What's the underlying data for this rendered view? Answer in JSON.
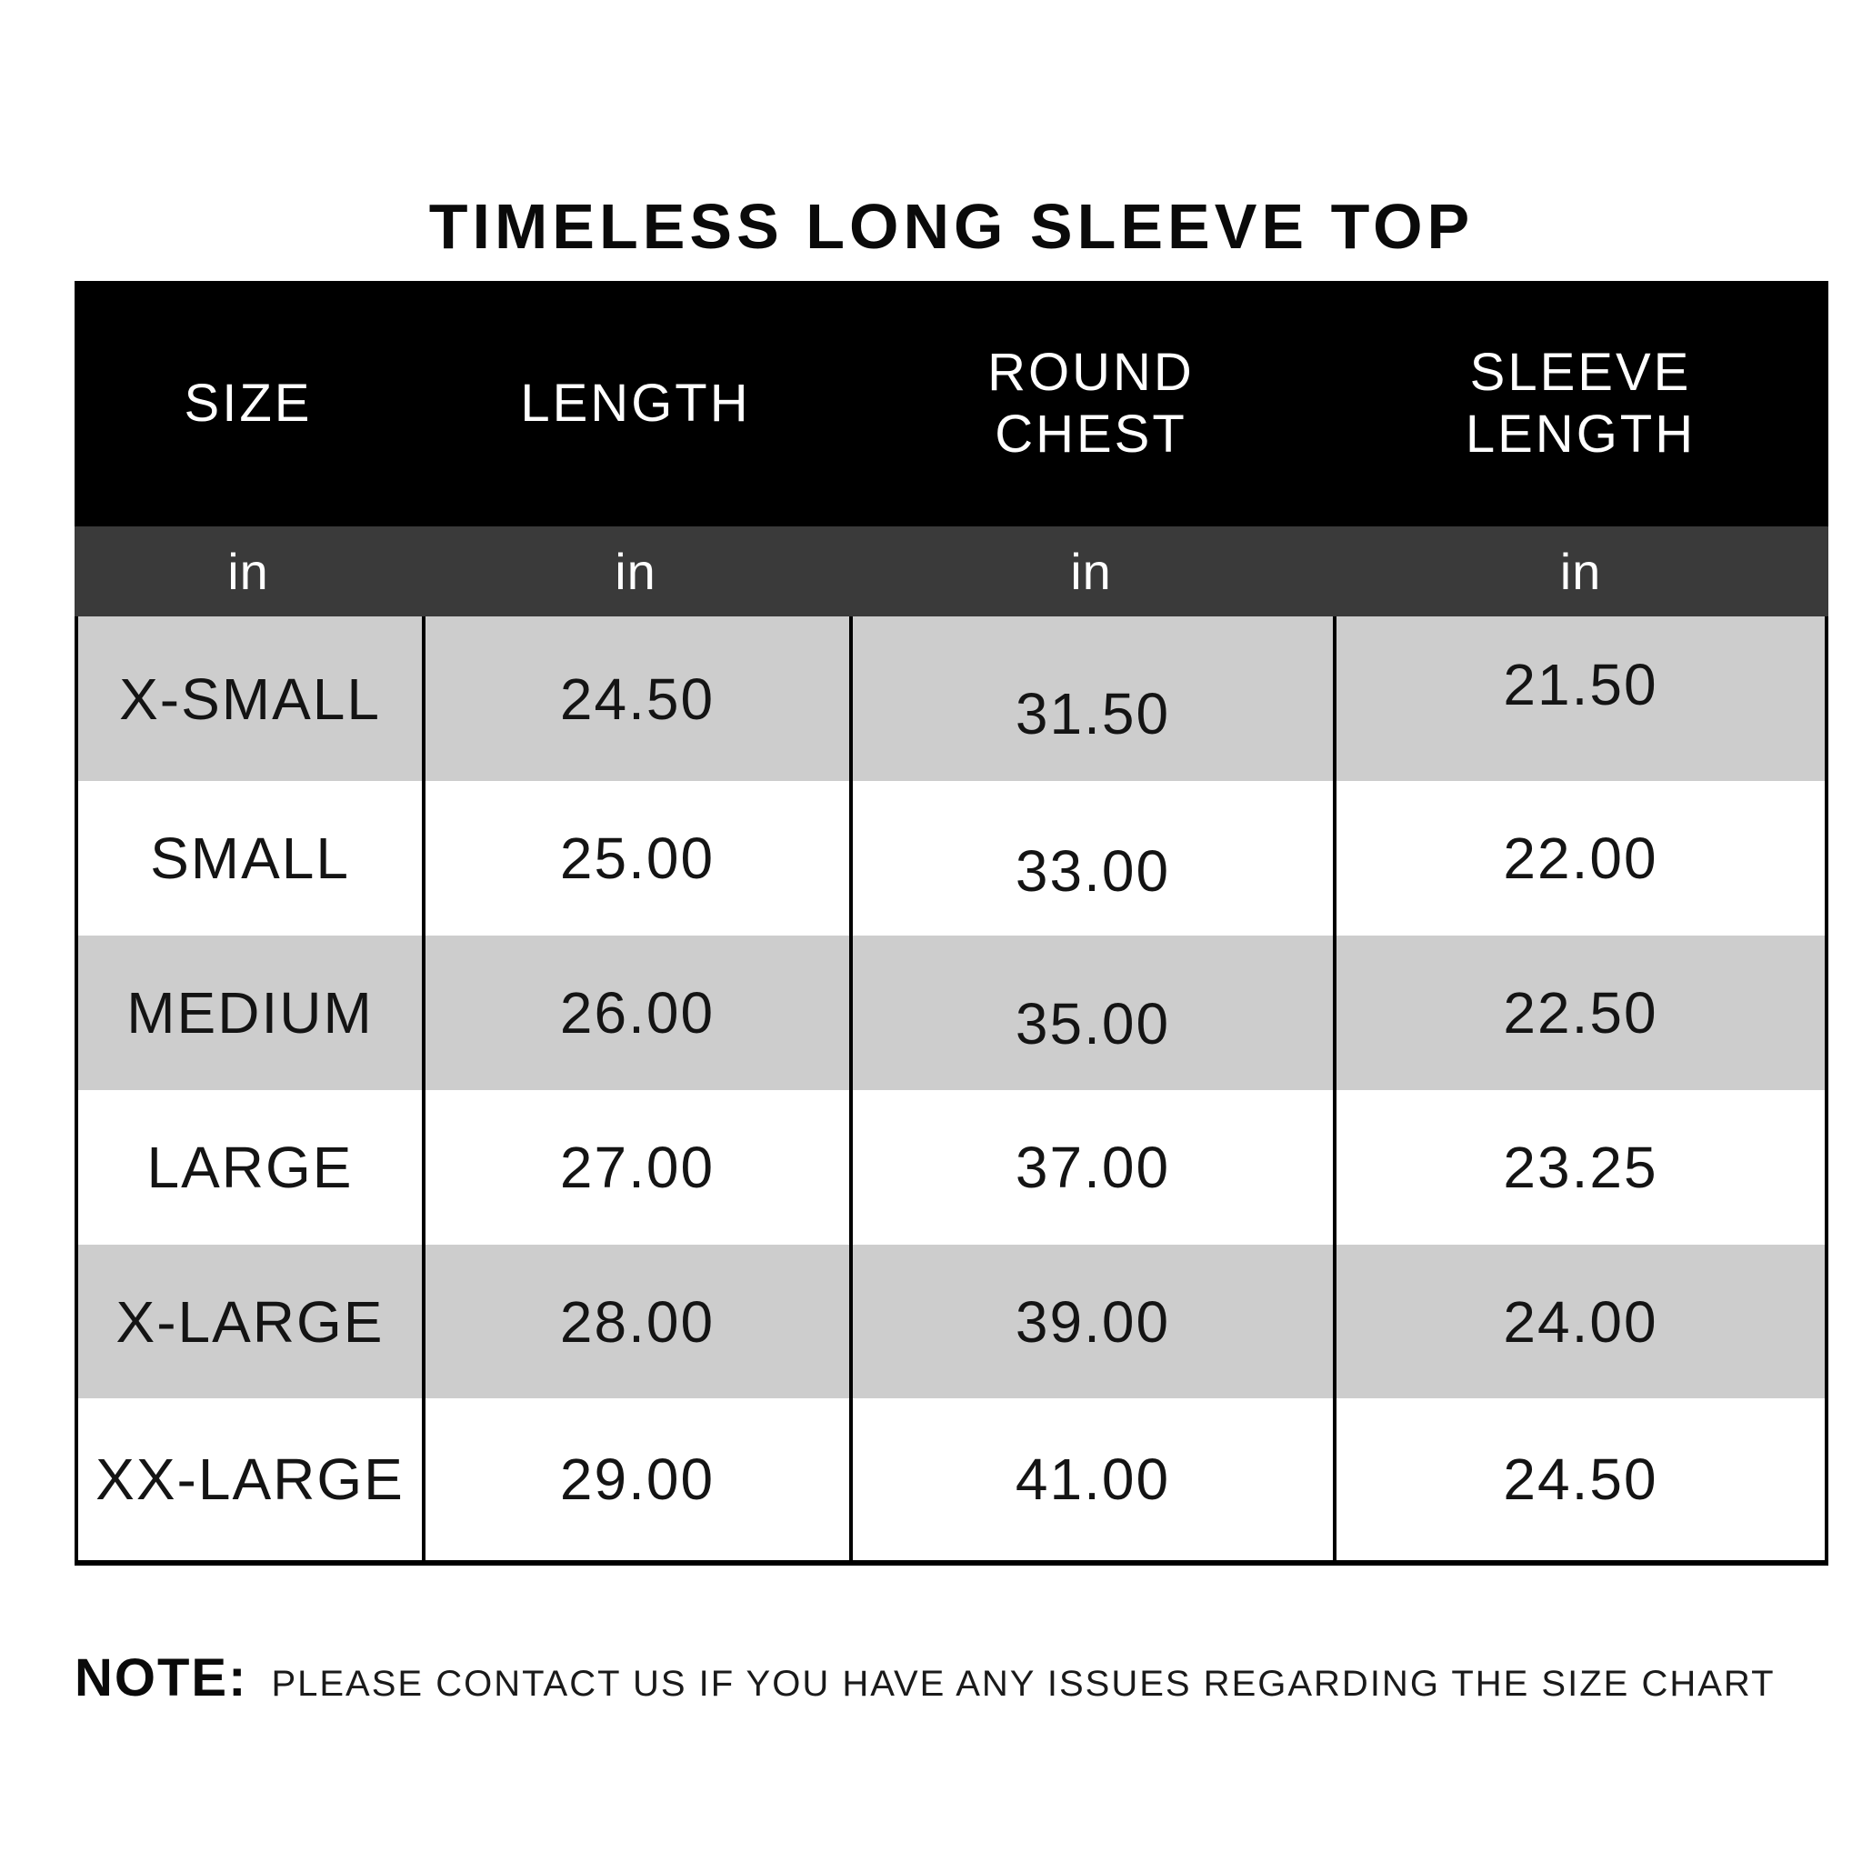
{
  "page_title": "TIMELESS LONG SLEEVE TOP",
  "colors": {
    "header_bg": "#000000",
    "header_text": "#ffffff",
    "unit_row_bg": "#3a3a3a",
    "alt_row_bg": "#cdcdcd",
    "row_bg": "#ffffff",
    "text": "#141414"
  },
  "chart_data": {
    "type": "table",
    "title": "TIMELESS LONG SLEEVE TOP",
    "columns": [
      "SIZE",
      "LENGTH",
      "ROUND CHEST",
      "SLEEVE LENGTH"
    ],
    "column_lines": [
      [
        "SIZE"
      ],
      [
        "LENGTH"
      ],
      [
        "ROUND",
        "CHEST"
      ],
      [
        "SLEEVE",
        "LENGTH"
      ]
    ],
    "units_row": [
      "in",
      "in",
      "in",
      "in"
    ],
    "rows": [
      [
        "X-SMALL",
        "24.50",
        "31.50",
        "21.50"
      ],
      [
        "SMALL",
        "25.00",
        "33.00",
        "22.00"
      ],
      [
        "MEDIUM",
        "26.00",
        "35.00",
        "22.50"
      ],
      [
        "LARGE",
        "27.00",
        "37.00",
        "23.25"
      ],
      [
        "X-LARGE",
        "28.00",
        "39.00",
        "24.00"
      ],
      [
        "XX-LARGE",
        "29.00",
        "41.00",
        "24.50"
      ]
    ]
  },
  "note": {
    "label": "NOTE:",
    "text": "PLEASE CONTACT US IF YOU HAVE ANY ISSUES REGARDING THE SIZE CHART"
  }
}
